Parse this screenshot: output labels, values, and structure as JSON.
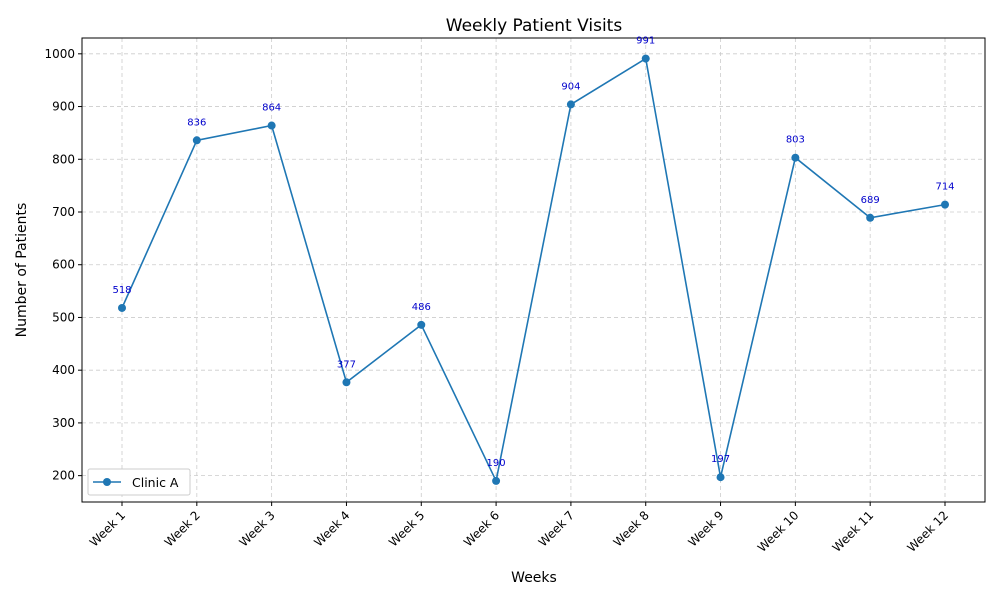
{
  "chart_data": {
    "type": "line",
    "title": "Weekly Patient Visits",
    "xlabel": "Weeks",
    "ylabel": "Number of Patients",
    "categories": [
      "Week 1",
      "Week 2",
      "Week 3",
      "Week 4",
      "Week 5",
      "Week 6",
      "Week 7",
      "Week 8",
      "Week 9",
      "Week 10",
      "Week 11",
      "Week 12"
    ],
    "series": [
      {
        "name": "Clinic A",
        "values": [
          518,
          836,
          864,
          377,
          486,
          190,
          904,
          991,
          197,
          803,
          689,
          714
        ],
        "color": "#1f77b4",
        "marker": "circle"
      }
    ],
    "ylim": [
      150,
      1030
    ],
    "yticks": [
      200,
      300,
      400,
      500,
      600,
      700,
      800,
      900,
      1000
    ],
    "grid": true,
    "legend_position": "lower-left",
    "data_label_color": "#0000cc"
  }
}
